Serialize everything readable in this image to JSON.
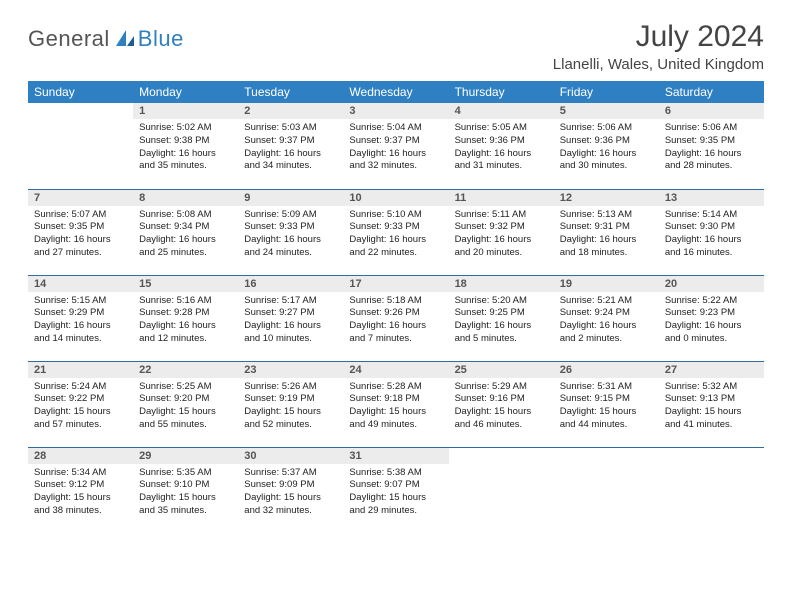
{
  "brand": {
    "general": "General",
    "blue": "Blue"
  },
  "title": "July 2024",
  "location": "Llanelli, Wales, United Kingdom",
  "colors": {
    "header_bg": "#2f80c2",
    "row_divider": "#2f6ca0",
    "daynum_bg": "#ececec",
    "logo_blue": "#2f80c2",
    "text": "#333333"
  },
  "weekdays": [
    "Sunday",
    "Monday",
    "Tuesday",
    "Wednesday",
    "Thursday",
    "Friday",
    "Saturday"
  ],
  "weeks": [
    [
      null,
      {
        "n": "1",
        "sr": "Sunrise: 5:02 AM",
        "ss": "Sunset: 9:38 PM",
        "dl": "Daylight: 16 hours and 35 minutes."
      },
      {
        "n": "2",
        "sr": "Sunrise: 5:03 AM",
        "ss": "Sunset: 9:37 PM",
        "dl": "Daylight: 16 hours and 34 minutes."
      },
      {
        "n": "3",
        "sr": "Sunrise: 5:04 AM",
        "ss": "Sunset: 9:37 PM",
        "dl": "Daylight: 16 hours and 32 minutes."
      },
      {
        "n": "4",
        "sr": "Sunrise: 5:05 AM",
        "ss": "Sunset: 9:36 PM",
        "dl": "Daylight: 16 hours and 31 minutes."
      },
      {
        "n": "5",
        "sr": "Sunrise: 5:06 AM",
        "ss": "Sunset: 9:36 PM",
        "dl": "Daylight: 16 hours and 30 minutes."
      },
      {
        "n": "6",
        "sr": "Sunrise: 5:06 AM",
        "ss": "Sunset: 9:35 PM",
        "dl": "Daylight: 16 hours and 28 minutes."
      }
    ],
    [
      {
        "n": "7",
        "sr": "Sunrise: 5:07 AM",
        "ss": "Sunset: 9:35 PM",
        "dl": "Daylight: 16 hours and 27 minutes."
      },
      {
        "n": "8",
        "sr": "Sunrise: 5:08 AM",
        "ss": "Sunset: 9:34 PM",
        "dl": "Daylight: 16 hours and 25 minutes."
      },
      {
        "n": "9",
        "sr": "Sunrise: 5:09 AM",
        "ss": "Sunset: 9:33 PM",
        "dl": "Daylight: 16 hours and 24 minutes."
      },
      {
        "n": "10",
        "sr": "Sunrise: 5:10 AM",
        "ss": "Sunset: 9:33 PM",
        "dl": "Daylight: 16 hours and 22 minutes."
      },
      {
        "n": "11",
        "sr": "Sunrise: 5:11 AM",
        "ss": "Sunset: 9:32 PM",
        "dl": "Daylight: 16 hours and 20 minutes."
      },
      {
        "n": "12",
        "sr": "Sunrise: 5:13 AM",
        "ss": "Sunset: 9:31 PM",
        "dl": "Daylight: 16 hours and 18 minutes."
      },
      {
        "n": "13",
        "sr": "Sunrise: 5:14 AM",
        "ss": "Sunset: 9:30 PM",
        "dl": "Daylight: 16 hours and 16 minutes."
      }
    ],
    [
      {
        "n": "14",
        "sr": "Sunrise: 5:15 AM",
        "ss": "Sunset: 9:29 PM",
        "dl": "Daylight: 16 hours and 14 minutes."
      },
      {
        "n": "15",
        "sr": "Sunrise: 5:16 AM",
        "ss": "Sunset: 9:28 PM",
        "dl": "Daylight: 16 hours and 12 minutes."
      },
      {
        "n": "16",
        "sr": "Sunrise: 5:17 AM",
        "ss": "Sunset: 9:27 PM",
        "dl": "Daylight: 16 hours and 10 minutes."
      },
      {
        "n": "17",
        "sr": "Sunrise: 5:18 AM",
        "ss": "Sunset: 9:26 PM",
        "dl": "Daylight: 16 hours and 7 minutes."
      },
      {
        "n": "18",
        "sr": "Sunrise: 5:20 AM",
        "ss": "Sunset: 9:25 PM",
        "dl": "Daylight: 16 hours and 5 minutes."
      },
      {
        "n": "19",
        "sr": "Sunrise: 5:21 AM",
        "ss": "Sunset: 9:24 PM",
        "dl": "Daylight: 16 hours and 2 minutes."
      },
      {
        "n": "20",
        "sr": "Sunrise: 5:22 AM",
        "ss": "Sunset: 9:23 PM",
        "dl": "Daylight: 16 hours and 0 minutes."
      }
    ],
    [
      {
        "n": "21",
        "sr": "Sunrise: 5:24 AM",
        "ss": "Sunset: 9:22 PM",
        "dl": "Daylight: 15 hours and 57 minutes."
      },
      {
        "n": "22",
        "sr": "Sunrise: 5:25 AM",
        "ss": "Sunset: 9:20 PM",
        "dl": "Daylight: 15 hours and 55 minutes."
      },
      {
        "n": "23",
        "sr": "Sunrise: 5:26 AM",
        "ss": "Sunset: 9:19 PM",
        "dl": "Daylight: 15 hours and 52 minutes."
      },
      {
        "n": "24",
        "sr": "Sunrise: 5:28 AM",
        "ss": "Sunset: 9:18 PM",
        "dl": "Daylight: 15 hours and 49 minutes."
      },
      {
        "n": "25",
        "sr": "Sunrise: 5:29 AM",
        "ss": "Sunset: 9:16 PM",
        "dl": "Daylight: 15 hours and 46 minutes."
      },
      {
        "n": "26",
        "sr": "Sunrise: 5:31 AM",
        "ss": "Sunset: 9:15 PM",
        "dl": "Daylight: 15 hours and 44 minutes."
      },
      {
        "n": "27",
        "sr": "Sunrise: 5:32 AM",
        "ss": "Sunset: 9:13 PM",
        "dl": "Daylight: 15 hours and 41 minutes."
      }
    ],
    [
      {
        "n": "28",
        "sr": "Sunrise: 5:34 AM",
        "ss": "Sunset: 9:12 PM",
        "dl": "Daylight: 15 hours and 38 minutes."
      },
      {
        "n": "29",
        "sr": "Sunrise: 5:35 AM",
        "ss": "Sunset: 9:10 PM",
        "dl": "Daylight: 15 hours and 35 minutes."
      },
      {
        "n": "30",
        "sr": "Sunrise: 5:37 AM",
        "ss": "Sunset: 9:09 PM",
        "dl": "Daylight: 15 hours and 32 minutes."
      },
      {
        "n": "31",
        "sr": "Sunrise: 5:38 AM",
        "ss": "Sunset: 9:07 PM",
        "dl": "Daylight: 15 hours and 29 minutes."
      },
      null,
      null,
      null
    ]
  ]
}
